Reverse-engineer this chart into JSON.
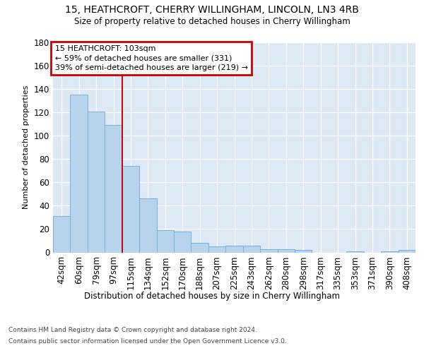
{
  "title": "15, HEATHCROFT, CHERRY WILLINGHAM, LINCOLN, LN3 4RB",
  "subtitle": "Size of property relative to detached houses in Cherry Willingham",
  "xlabel": "Distribution of detached houses by size in Cherry Willingham",
  "ylabel": "Number of detached properties",
  "bar_values": [
    31,
    135,
    121,
    109,
    74,
    46,
    19,
    18,
    8,
    5,
    6,
    6,
    3,
    3,
    2,
    0,
    0,
    1,
    0,
    1,
    2
  ],
  "bin_labels": [
    "42sqm",
    "60sqm",
    "79sqm",
    "97sqm",
    "115sqm",
    "134sqm",
    "152sqm",
    "170sqm",
    "188sqm",
    "207sqm",
    "225sqm",
    "243sqm",
    "262sqm",
    "280sqm",
    "298sqm",
    "317sqm",
    "335sqm",
    "353sqm",
    "371sqm",
    "390sqm",
    "408sqm"
  ],
  "bar_color": "#b8d4ed",
  "bar_edge_color": "#7aafd4",
  "vline_color": "#cc0000",
  "vline_pos": 3.5,
  "annotation_line1": "15 HEATHCROFT: 103sqm",
  "annotation_line2": "← 59% of detached houses are smaller (331)",
  "annotation_line3": "39% of semi-detached houses are larger (219) →",
  "annotation_box_edgecolor": "#cc0000",
  "ylim": [
    0,
    180
  ],
  "yticks": [
    0,
    20,
    40,
    60,
    80,
    100,
    120,
    140,
    160,
    180
  ],
  "bg_color": "#dde8f5",
  "grid_color": "#ffffff",
  "footer_line1": "Contains HM Land Registry data © Crown copyright and database right 2024.",
  "footer_line2": "Contains public sector information licensed under the Open Government Licence v3.0."
}
